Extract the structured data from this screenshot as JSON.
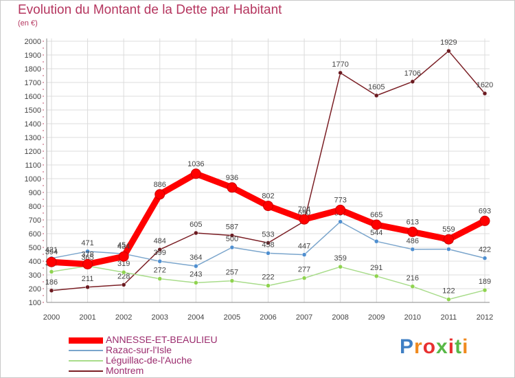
{
  "header": {
    "title": "Evolution du Montant de la Dette par Habitant",
    "unit": "(en €)"
  },
  "logo": {
    "text": "Proxiti",
    "colors": [
      "#3f7fc4",
      "#f08a1e",
      "#e83030",
      "#58b847",
      "#e83030",
      "#58b847",
      "#f08a1e"
    ]
  },
  "chart_data": {
    "type": "line",
    "x": [
      "2000",
      "2001",
      "2002",
      "2003",
      "2004",
      "2005",
      "2006",
      "2007",
      "2008",
      "2009",
      "2010",
      "2011",
      "2012"
    ],
    "ylim": [
      100,
      2000
    ],
    "yticks": [
      100,
      200,
      300,
      400,
      500,
      600,
      700,
      800,
      900,
      1000,
      1100,
      1200,
      1300,
      1400,
      1500,
      1600,
      1700,
      1800,
      1900,
      2000
    ],
    "grid": true,
    "legend_position": "bottom-left",
    "series": [
      {
        "name": "Montrem",
        "color": "#7a1e24",
        "marker": "#6b1a20",
        "values": [
          186,
          211,
          228,
          484,
          605,
          587,
          533,
          690,
          1770,
          1605,
          1706,
          1929,
          1620
        ]
      },
      {
        "name": "Léguillac-de-l'Auche",
        "color": "#a8dc8a",
        "marker": "#8fd34f",
        "values": [
          323,
          365,
          319,
          272,
          243,
          257,
          222,
          277,
          359,
          291,
          216,
          122,
          189
        ]
      },
      {
        "name": "Razac-sur-l'Isle",
        "color": "#7aa5cc",
        "marker": "#4f8fd0",
        "values": [
          421,
          471,
          454,
          399,
          364,
          500,
          458,
          447,
          687,
          544,
          486,
          487,
          422
        ]
      },
      {
        "name": "ANNESSE-ET-BEAULIEU",
        "color": "#ff0000",
        "marker": "#ff0000",
        "values": [
          394,
          378,
          434,
          886,
          1036,
          936,
          802,
          704,
          773,
          665,
          613,
          559,
          693
        ]
      }
    ],
    "legend_order": [
      "ANNESSE-ET-BEAULIEU",
      "Razac-sur-l'Isle",
      "Léguillac-de-l'Auche",
      "Montrem"
    ]
  }
}
